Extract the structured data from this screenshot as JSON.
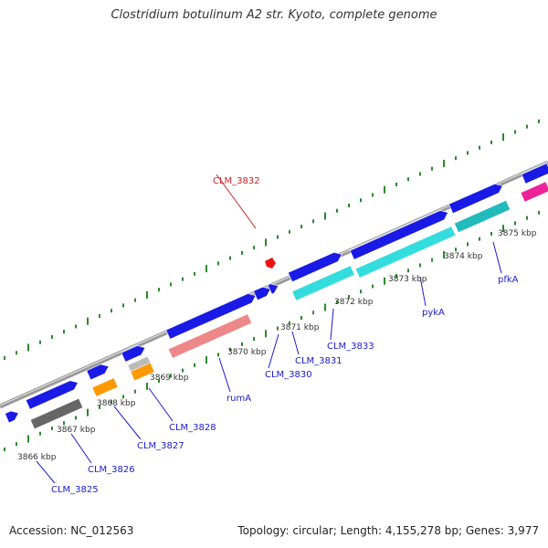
{
  "title": "Clostridium botulinum A2 str. Kyoto, complete genome",
  "footer": {
    "accession": "Accession: NC_012563",
    "summary": "Topology: circular; Length: 4,155,278 bp; Genes: 3,977"
  },
  "colors": {
    "backbone": "#999999",
    "tick": "#2a8a2a",
    "forward_gene": "#1a1ae6",
    "label_forward": "#1a1acc",
    "label_reverse": "#cc2222",
    "gene_salmon": "#ee8888",
    "gene_cyan": "#33dddd",
    "gene_teal": "#22bbbb",
    "gene_gray": "#666666",
    "gene_lightgray": "#bbbbbb",
    "gene_orange": "#ff9900",
    "gene_magenta": "#ee2299"
  },
  "kbp_labels": [
    "3866 kbp",
    "3867 kbp",
    "3868 kbp",
    "3869 kbp",
    "3870 kbp",
    "3871 kbp",
    "3872 kbp",
    "3873 kbp",
    "3874 kbp",
    "3875 kbp"
  ],
  "gene_labels": [
    "CLM_3825",
    "CLM_3826",
    "CLM_3827",
    "CLM_3828",
    "rumA",
    "CLM_3830",
    "CLM_3831",
    "CLM_3832",
    "CLM_3833",
    "pykA",
    "pfkA"
  ]
}
